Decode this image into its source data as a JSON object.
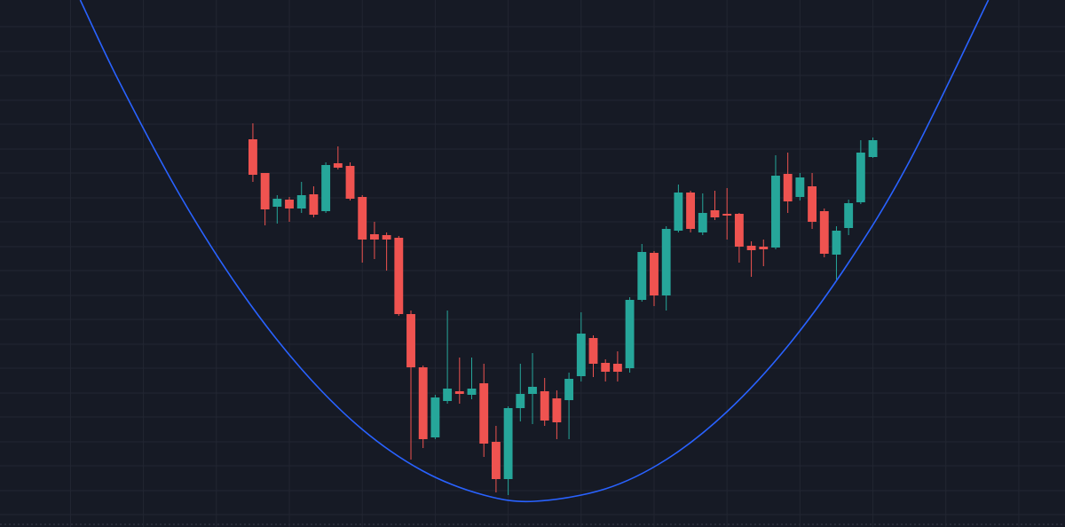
{
  "chart_data": {
    "type": "candlestick",
    "x": [
      1,
      2,
      3,
      4,
      5,
      6,
      7,
      8,
      9,
      10,
      11,
      12,
      13,
      14,
      15,
      16,
      17,
      18,
      19,
      20,
      21,
      22,
      23,
      24,
      25,
      26,
      27,
      28,
      29,
      30,
      31,
      32,
      33,
      34,
      35,
      36,
      37,
      38,
      39,
      40,
      41,
      42,
      43,
      44,
      45,
      46,
      47,
      48,
      49,
      50,
      51,
      52
    ],
    "open": [
      437,
      399,
      361,
      369,
      359,
      375,
      356,
      410,
      407,
      372,
      330,
      329,
      326,
      240,
      180,
      101,
      142,
      153,
      149,
      162,
      96,
      54,
      134,
      150,
      153,
      145,
      143,
      170,
      213,
      185,
      184,
      179,
      256,
      309,
      261,
      334,
      377,
      332,
      357,
      353,
      353,
      317,
      316,
      315,
      398,
      372,
      384,
      356,
      307,
      337,
      366,
      417
    ],
    "high": [
      455,
      399,
      374,
      372,
      389,
      384,
      411,
      429,
      411,
      374,
      344,
      332,
      328,
      244,
      182,
      149,
      244,
      191,
      191,
      184,
      114,
      136,
      184,
      196,
      168,
      154,
      174,
      242,
      216,
      189,
      198,
      259,
      319,
      311,
      339,
      386,
      379,
      376,
      379,
      382,
      354,
      322,
      324,
      419,
      422,
      399,
      399,
      359,
      339,
      369,
      436,
      439
    ],
    "low": [
      389,
      340,
      342,
      344,
      354,
      349,
      354,
      403,
      368,
      298,
      302,
      289,
      238,
      76,
      89,
      99,
      139,
      139,
      144,
      79,
      39,
      36,
      119,
      116,
      114,
      99,
      99,
      164,
      169,
      164,
      164,
      174,
      254,
      249,
      244,
      332,
      332,
      329,
      346,
      324,
      298,
      282,
      294,
      313,
      354,
      368,
      336,
      304,
      279,
      329,
      364,
      416
    ],
    "close": [
      397,
      358,
      370,
      359,
      374,
      352,
      408,
      405,
      370,
      324,
      324,
      324,
      240,
      180,
      99,
      146,
      156,
      150,
      156,
      94,
      54,
      134,
      150,
      158,
      120,
      118,
      167,
      218,
      184,
      175,
      175,
      256,
      310,
      261,
      336,
      377,
      336,
      354,
      349,
      351,
      316,
      312,
      313,
      396,
      367,
      394,
      344,
      308,
      334,
      365,
      422,
      436
    ],
    "up_color": "#26a69a",
    "down_color": "#ef5350",
    "curve": {
      "color": "#2962ff",
      "x": [
        -13.2,
        -10,
        -5,
        0,
        5,
        10,
        15,
        20,
        24.2,
        30,
        35,
        40,
        45,
        50,
        55,
        61.5
      ],
      "values": [
        594,
        502,
        374,
        266,
        178,
        110,
        63,
        36,
        29,
        43,
        76,
        130,
        204,
        298,
        412,
        594
      ]
    },
    "xlim": [
      -19.8,
      67.8
    ],
    "ylim": [
      0,
      594
    ],
    "xticks": [
      -14,
      -8,
      -2,
      4,
      10,
      16,
      22,
      28,
      34,
      40,
      46,
      52,
      58,
      64
    ],
    "yticks": [
      14,
      41,
      69,
      96,
      124,
      151,
      179,
      206,
      234,
      261,
      289,
      316,
      344,
      371,
      399,
      426,
      454,
      481,
      509,
      536,
      564
    ],
    "grid": true
  }
}
